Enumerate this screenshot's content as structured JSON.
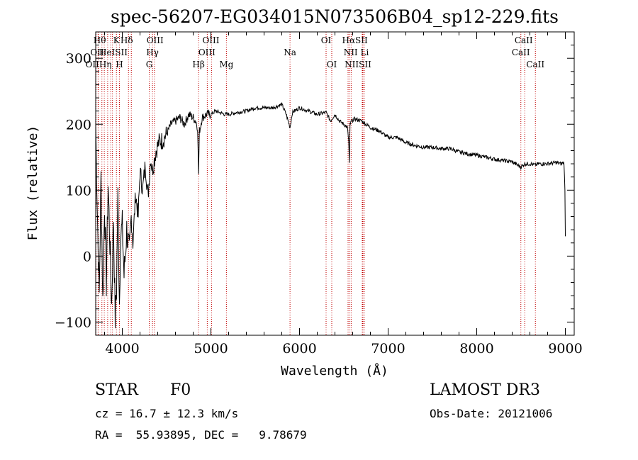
{
  "chart_data": {
    "type": "line",
    "title": "spec-56207-EG034015N073506B04_sp12-229.fits",
    "xlabel": "Wavelength (Å)",
    "ylabel": "Flux (relative)",
    "xlim": [
      3700,
      9100
    ],
    "ylim": [
      -120,
      340
    ],
    "xticks": [
      4000,
      5000,
      6000,
      7000,
      8000,
      9000
    ],
    "yticks": [
      -100,
      0,
      100,
      200,
      300
    ],
    "grid": false,
    "series": [
      {
        "color": "#000000",
        "x": [
          3700,
          3720,
          3740,
          3760,
          3780,
          3800,
          3820,
          3840,
          3860,
          3880,
          3900,
          3920,
          3935,
          3950,
          3968,
          3980,
          4000,
          4020,
          4050,
          4080,
          4101,
          4120,
          4150,
          4180,
          4200,
          4230,
          4260,
          4290,
          4320,
          4340,
          4380,
          4420,
          4450,
          4500,
          4550,
          4600,
          4650,
          4700,
          4750,
          4800,
          4830,
          4850,
          4861,
          4870,
          4880,
          4900,
          4950,
          5000,
          5050,
          5100,
          5150,
          5200,
          5300,
          5400,
          5500,
          5600,
          5700,
          5800,
          5850,
          5893,
          5920,
          6000,
          6100,
          6200,
          6300,
          6350,
          6400,
          6450,
          6500,
          6540,
          6555,
          6563,
          6570,
          6590,
          6620,
          6700,
          6800,
          6900,
          7000,
          7100,
          7200,
          7300,
          7400,
          7500,
          7600,
          7700,
          7800,
          7900,
          8000,
          8100,
          8200,
          8300,
          8400,
          8498,
          8542,
          8600,
          8662,
          8700,
          8800,
          8900,
          8950,
          8985,
          8995,
          9000
        ],
        "y": [
          200,
          60,
          -60,
          120,
          -70,
          80,
          -40,
          110,
          20,
          -75,
          60,
          -95,
          -50,
          90,
          -70,
          30,
          45,
          -30,
          40,
          0,
          60,
          20,
          95,
          60,
          130,
          100,
          140,
          90,
          150,
          130,
          160,
          175,
          175,
          185,
          200,
          205,
          210,
          200,
          215,
          210,
          205,
          195,
          125,
          190,
          195,
          210,
          215,
          215,
          220,
          218,
          215,
          215,
          218,
          220,
          225,
          225,
          225,
          230,
          215,
          195,
          218,
          225,
          220,
          215,
          218,
          205,
          215,
          205,
          200,
          195,
          175,
          140,
          200,
          205,
          208,
          205,
          195,
          190,
          180,
          180,
          172,
          168,
          165,
          165,
          163,
          163,
          158,
          155,
          153,
          150,
          147,
          145,
          143,
          135,
          140,
          140,
          138,
          140,
          140,
          142,
          140,
          142,
          100,
          30
        ]
      }
    ],
    "line_markers": [
      {
        "wavelength": 3704,
        "label": ""
      },
      {
        "wavelength": 3727,
        "label": "OII"
      },
      {
        "wavelength": 3730,
        "label": "OII"
      },
      {
        "wavelength": 3770,
        "label": "Hθ"
      },
      {
        "wavelength": 3797,
        "label": "Hη"
      },
      {
        "wavelength": 3835,
        "label": "Hη"
      },
      {
        "wavelength": 3870,
        "label": "NeIII"
      },
      {
        "wavelength": 3889,
        "label": "HeI"
      },
      {
        "wavelength": 3934,
        "label": "K"
      },
      {
        "wavelength": 3968,
        "label": "H"
      },
      {
        "wavelength": 4070,
        "label": "SII"
      },
      {
        "wavelength": 4102,
        "label": "Hδ"
      },
      {
        "wavelength": 4304,
        "label": "G"
      },
      {
        "wavelength": 4341,
        "label": "Hγ"
      },
      {
        "wavelength": 4363,
        "label": "OIII"
      },
      {
        "wavelength": 4861,
        "label": "Hβ"
      },
      {
        "wavelength": 4959,
        "label": "OIII"
      },
      {
        "wavelength": 5007,
        "label": "OIII"
      },
      {
        "wavelength": 5175,
        "label": "Mg"
      },
      {
        "wavelength": 5893,
        "label": "Na"
      },
      {
        "wavelength": 6300,
        "label": "OI"
      },
      {
        "wavelength": 6364,
        "label": "OI"
      },
      {
        "wavelength": 6548,
        "label": "NII"
      },
      {
        "wavelength": 6563,
        "label": "Hα"
      },
      {
        "wavelength": 6583,
        "label": "NII"
      },
      {
        "wavelength": 6708,
        "label": "Li"
      },
      {
        "wavelength": 6716,
        "label": "SII"
      },
      {
        "wavelength": 6731,
        "label": "SII"
      },
      {
        "wavelength": 8498,
        "label": "CaII"
      },
      {
        "wavelength": 8542,
        "label": "CaII"
      },
      {
        "wavelength": 8662,
        "label": "CaII"
      }
    ],
    "line_labels": [
      {
        "text": "Hθ",
        "wavelength": 3745,
        "row": 0
      },
      {
        "text": "K",
        "wavelength": 3934,
        "row": 0
      },
      {
        "text": "Hδ",
        "wavelength": 4050,
        "row": 0
      },
      {
        "text": "OIII",
        "wavelength": 4370,
        "row": 0
      },
      {
        "text": "OIII",
        "wavelength": 5000,
        "row": 0
      },
      {
        "text": "OI",
        "wavelength": 6300,
        "row": 0
      },
      {
        "text": "HαSII",
        "wavelength": 6625,
        "row": 0
      },
      {
        "text": "CaII",
        "wavelength": 8530,
        "row": 0
      },
      {
        "text": "OII",
        "wavelength": 3716,
        "row": 1
      },
      {
        "text": "HeISII",
        "wavelength": 3900,
        "row": 1
      },
      {
        "text": "Hγ",
        "wavelength": 4341,
        "row": 1
      },
      {
        "text": "OIII",
        "wavelength": 4955,
        "row": 1
      },
      {
        "text": "Na",
        "wavelength": 5893,
        "row": 1
      },
      {
        "text": "NII Li",
        "wavelength": 6640,
        "row": 1
      },
      {
        "text": "CaII",
        "wavelength": 8498,
        "row": 1
      },
      {
        "text": "OIIHη",
        "wavelength": 3732,
        "row": 2
      },
      {
        "text": "H",
        "wavelength": 3968,
        "row": 2
      },
      {
        "text": "G",
        "wavelength": 4304,
        "row": 2
      },
      {
        "text": "Hβ",
        "wavelength": 4861,
        "row": 2
      },
      {
        "text": "Mg",
        "wavelength": 5175,
        "row": 2
      },
      {
        "text": "OI",
        "wavelength": 6364,
        "row": 2
      },
      {
        "text": "NIISII",
        "wavelength": 6660,
        "row": 2
      },
      {
        "text": "CaII",
        "wavelength": 8662,
        "row": 2
      }
    ],
    "marker_color": "#c00000"
  },
  "info": {
    "object_class": "STAR",
    "subclass": "F0",
    "survey": "LAMOST DR3",
    "redshift_text": "cz = 16.7 ± 12.3 km/s",
    "obs_date_text": "Obs-Date: 20121006",
    "coords_text": "RA =  55.93895, DEC =   9.78679"
  }
}
